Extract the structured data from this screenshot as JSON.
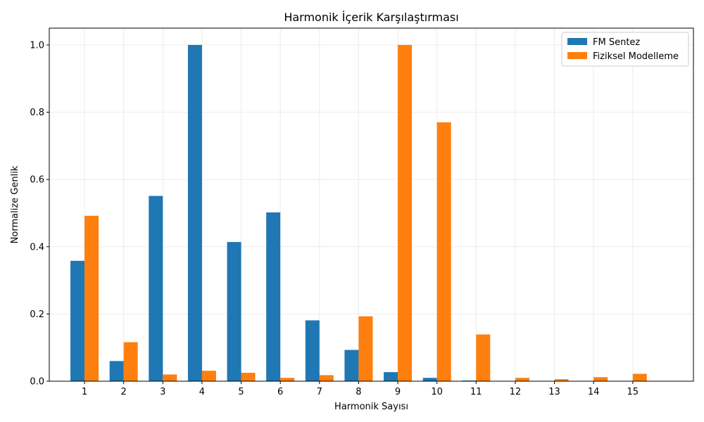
{
  "chart_data": {
    "type": "bar",
    "title": "Harmonik İçerik Karşılaştırması",
    "xlabel": "Harmonik Sayısı",
    "ylabel": "Normalize Genlik",
    "categories": [
      "1",
      "2",
      "3",
      "4",
      "5",
      "6",
      "7",
      "8",
      "9",
      "10",
      "11",
      "12",
      "13",
      "14",
      "15"
    ],
    "ylim": [
      0,
      1.05
    ],
    "yticks": [
      "0.0",
      "0.2",
      "0.4",
      "0.6",
      "0.8",
      "1.0"
    ],
    "grid": true,
    "legend_position": "top-right",
    "series": [
      {
        "name": "FM Sentez",
        "color": "#1f77b4",
        "values": [
          0.358,
          0.06,
          0.551,
          1.0,
          0.414,
          0.502,
          0.181,
          0.093,
          0.027,
          0.01,
          0.002,
          0.001,
          0.0,
          0.0,
          0.0
        ]
      },
      {
        "name": "Fiziksel Modelleme",
        "color": "#ff7f0e",
        "values": [
          0.492,
          0.116,
          0.02,
          0.031,
          0.025,
          0.01,
          0.018,
          0.193,
          1.0,
          0.77,
          0.139,
          0.01,
          0.006,
          0.012,
          0.022
        ]
      }
    ]
  }
}
